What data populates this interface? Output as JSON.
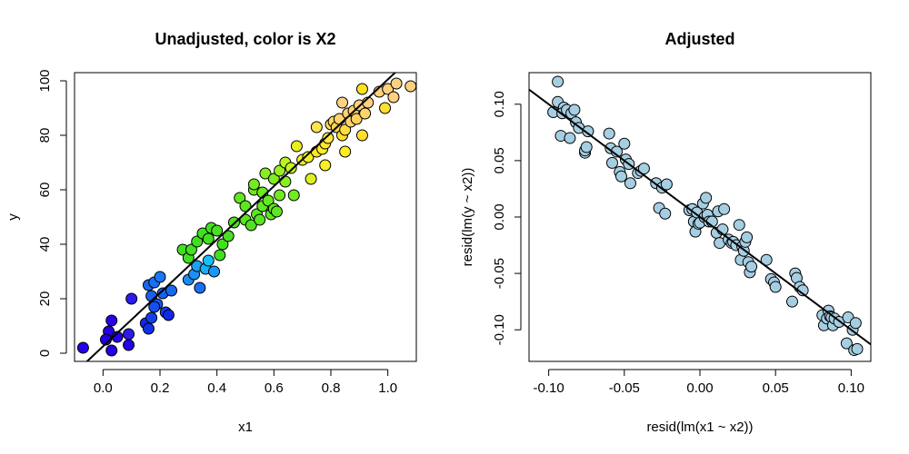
{
  "chart_data": [
    {
      "type": "scatter",
      "title": "Unadjusted, color is X2",
      "xlabel": "x1",
      "ylabel": "y",
      "xlim": [
        -0.1,
        1.1
      ],
      "ylim": [
        -3,
        103
      ],
      "xticks": [
        0.0,
        0.2,
        0.4,
        0.6,
        0.8,
        1.0
      ],
      "xtick_labels": [
        "0.0",
        "0.2",
        "0.4",
        "0.6",
        "0.8",
        "1.0"
      ],
      "yticks": [
        0,
        20,
        40,
        60,
        80,
        100
      ],
      "ytick_labels": [
        "0",
        "20",
        "40",
        "60",
        "80",
        "100"
      ],
      "fit_line": {
        "intercept": 2.5,
        "slope": 98
      },
      "color_encoding": "X2",
      "points": [
        {
          "x": -0.07,
          "y": 2,
          "color": "#2400e6"
        },
        {
          "x": 0.02,
          "y": 8,
          "color": "#2400e6"
        },
        {
          "x": 0.03,
          "y": 12,
          "color": "#2a00ea"
        },
        {
          "x": 0.03,
          "y": 1,
          "color": "#2400e6"
        },
        {
          "x": 0.01,
          "y": 5,
          "color": "#2000e0"
        },
        {
          "x": 0.05,
          "y": 6,
          "color": "#2a00ea"
        },
        {
          "x": 0.09,
          "y": 7,
          "color": "#2c1be6"
        },
        {
          "x": 0.09,
          "y": 3,
          "color": "#2400e6"
        },
        {
          "x": 0.1,
          "y": 20,
          "color": "#2a1bf0"
        },
        {
          "x": 0.15,
          "y": 11,
          "color": "#1028e8"
        },
        {
          "x": 0.16,
          "y": 9,
          "color": "#1030ea"
        },
        {
          "x": 0.17,
          "y": 13,
          "color": "#1040ee"
        },
        {
          "x": 0.16,
          "y": 25,
          "color": "#1868f0"
        },
        {
          "x": 0.18,
          "y": 26,
          "color": "#1a70f4"
        },
        {
          "x": 0.17,
          "y": 21,
          "color": "#1860f0"
        },
        {
          "x": 0.19,
          "y": 18,
          "color": "#1458ee"
        },
        {
          "x": 0.2,
          "y": 28,
          "color": "#1a78f6"
        },
        {
          "x": 0.21,
          "y": 22,
          "color": "#1860f2"
        },
        {
          "x": 0.22,
          "y": 15,
          "color": "#1040ee"
        },
        {
          "x": 0.23,
          "y": 14,
          "color": "#1028e8"
        },
        {
          "x": 0.24,
          "y": 23,
          "color": "#1868f2"
        },
        {
          "x": 0.18,
          "y": 17,
          "color": "#1450ee"
        },
        {
          "x": 0.28,
          "y": 38,
          "color": "#40e020"
        },
        {
          "x": 0.3,
          "y": 35,
          "color": "#40e020"
        },
        {
          "x": 0.31,
          "y": 38,
          "color": "#44e020"
        },
        {
          "x": 0.33,
          "y": 41,
          "color": "#40e020"
        },
        {
          "x": 0.3,
          "y": 27,
          "color": "#1a8cf8"
        },
        {
          "x": 0.32,
          "y": 29,
          "color": "#1a90f8"
        },
        {
          "x": 0.33,
          "y": 32,
          "color": "#1ca0f8"
        },
        {
          "x": 0.34,
          "y": 24,
          "color": "#1870f4"
        },
        {
          "x": 0.35,
          "y": 44,
          "color": "#40e020"
        },
        {
          "x": 0.36,
          "y": 31,
          "color": "#1ab0f8"
        },
        {
          "x": 0.37,
          "y": 34,
          "color": "#14c0f8"
        },
        {
          "x": 0.38,
          "y": 46,
          "color": "#44e020"
        },
        {
          "x": 0.37,
          "y": 42,
          "color": "#40e020"
        },
        {
          "x": 0.39,
          "y": 30,
          "color": "#1a98f8"
        },
        {
          "x": 0.4,
          "y": 45,
          "color": "#48e020"
        },
        {
          "x": 0.41,
          "y": 36,
          "color": "#40e020"
        },
        {
          "x": 0.42,
          "y": 40,
          "color": "#44e020"
        },
        {
          "x": 0.44,
          "y": 43,
          "color": "#48e020"
        },
        {
          "x": 0.46,
          "y": 48,
          "color": "#4ce020"
        },
        {
          "x": 0.48,
          "y": 57,
          "color": "#60e820"
        },
        {
          "x": 0.5,
          "y": 49,
          "color": "#58e420"
        },
        {
          "x": 0.5,
          "y": 54,
          "color": "#5ce620"
        },
        {
          "x": 0.52,
          "y": 47,
          "color": "#50e220"
        },
        {
          "x": 0.53,
          "y": 60,
          "color": "#70ea20"
        },
        {
          "x": 0.53,
          "y": 62,
          "color": "#74ea20"
        },
        {
          "x": 0.54,
          "y": 51,
          "color": "#5ce620"
        },
        {
          "x": 0.55,
          "y": 49,
          "color": "#58e420"
        },
        {
          "x": 0.56,
          "y": 54,
          "color": "#60e820"
        },
        {
          "x": 0.56,
          "y": 59,
          "color": "#6cea20"
        },
        {
          "x": 0.57,
          "y": 66,
          "color": "#88ee20"
        },
        {
          "x": 0.58,
          "y": 56,
          "color": "#66e820"
        },
        {
          "x": 0.59,
          "y": 51,
          "color": "#5ce620"
        },
        {
          "x": 0.6,
          "y": 64,
          "color": "#80ec20"
        },
        {
          "x": 0.6,
          "y": 53,
          "color": "#60e820"
        },
        {
          "x": 0.61,
          "y": 52,
          "color": "#5ee620"
        },
        {
          "x": 0.62,
          "y": 67,
          "color": "#98f020"
        },
        {
          "x": 0.62,
          "y": 58,
          "color": "#70ea20"
        },
        {
          "x": 0.64,
          "y": 70,
          "color": "#b8f420"
        },
        {
          "x": 0.64,
          "y": 63,
          "color": "#88ee20"
        },
        {
          "x": 0.66,
          "y": 68,
          "color": "#c8f420"
        },
        {
          "x": 0.67,
          "y": 58,
          "color": "#74ea20"
        },
        {
          "x": 0.68,
          "y": 76,
          "color": "#e8f020"
        },
        {
          "x": 0.7,
          "y": 71,
          "color": "#eef020"
        },
        {
          "x": 0.72,
          "y": 72,
          "color": "#f4f020"
        },
        {
          "x": 0.73,
          "y": 64,
          "color": "#dcf020"
        },
        {
          "x": 0.75,
          "y": 74,
          "color": "#ffe820"
        },
        {
          "x": 0.75,
          "y": 83,
          "color": "#ffe450"
        },
        {
          "x": 0.77,
          "y": 75,
          "color": "#ffee20"
        },
        {
          "x": 0.78,
          "y": 77,
          "color": "#ffe830"
        },
        {
          "x": 0.78,
          "y": 69,
          "color": "#f8f020"
        },
        {
          "x": 0.79,
          "y": 79,
          "color": "#ffe840"
        },
        {
          "x": 0.8,
          "y": 84,
          "color": "#ffd860"
        },
        {
          "x": 0.81,
          "y": 85,
          "color": "#ffd660"
        },
        {
          "x": 0.82,
          "y": 83,
          "color": "#ffd450"
        },
        {
          "x": 0.83,
          "y": 86,
          "color": "#ffd468"
        },
        {
          "x": 0.84,
          "y": 80,
          "color": "#ffe030"
        },
        {
          "x": 0.84,
          "y": 92,
          "color": "#ffd280"
        },
        {
          "x": 0.85,
          "y": 82,
          "color": "#ffdc40"
        },
        {
          "x": 0.85,
          "y": 74,
          "color": "#ffec20"
        },
        {
          "x": 0.86,
          "y": 88,
          "color": "#ffd070"
        },
        {
          "x": 0.87,
          "y": 85,
          "color": "#ffd470"
        },
        {
          "x": 0.88,
          "y": 89,
          "color": "#ffd070"
        },
        {
          "x": 0.89,
          "y": 86,
          "color": "#ffd060"
        },
        {
          "x": 0.9,
          "y": 91,
          "color": "#ffd080"
        },
        {
          "x": 0.91,
          "y": 80,
          "color": "#ffe030"
        },
        {
          "x": 0.91,
          "y": 97,
          "color": "#ffe020"
        },
        {
          "x": 0.92,
          "y": 88,
          "color": "#ffd468"
        },
        {
          "x": 0.93,
          "y": 92,
          "color": "#ffd080"
        },
        {
          "x": 0.97,
          "y": 96,
          "color": "#ffd080"
        },
        {
          "x": 0.99,
          "y": 90,
          "color": "#ffe030"
        },
        {
          "x": 1.0,
          "y": 97,
          "color": "#ffd080"
        },
        {
          "x": 1.02,
          "y": 94,
          "color": "#ffd080"
        },
        {
          "x": 1.03,
          "y": 99,
          "color": "#ffd080"
        },
        {
          "x": 1.08,
          "y": 98,
          "color": "#ffd080"
        }
      ]
    },
    {
      "type": "scatter",
      "title": "Adjusted",
      "xlabel": "resid(lm(x1 ~ x2))",
      "ylabel": "resid(lm(y ~ x2))",
      "xlim": [
        -0.113,
        0.113
      ],
      "ylim": [
        -0.128,
        0.128
      ],
      "xticks": [
        -0.1,
        -0.05,
        0.0,
        0.05,
        0.1
      ],
      "xtick_labels": [
        "-0.10",
        "-0.05",
        "0.00",
        "0.05",
        "0.10"
      ],
      "yticks": [
        -0.1,
        -0.05,
        0.0,
        0.05,
        0.1
      ],
      "ytick_labels": [
        "-0.10",
        "-0.05",
        "0.00",
        "0.05",
        "0.10"
      ],
      "fit_line": {
        "intercept": 0.0,
        "slope": -1.0
      },
      "point_color": "#a6cee3",
      "points": [
        {
          "x": -0.094,
          "y": 0.12
        },
        {
          "x": -0.097,
          "y": 0.093
        },
        {
          "x": -0.094,
          "y": 0.102
        },
        {
          "x": -0.092,
          "y": 0.072
        },
        {
          "x": -0.09,
          "y": 0.097
        },
        {
          "x": -0.091,
          "y": 0.092
        },
        {
          "x": -0.088,
          "y": 0.095
        },
        {
          "x": -0.086,
          "y": 0.07
        },
        {
          "x": -0.085,
          "y": 0.092
        },
        {
          "x": -0.083,
          "y": 0.095
        },
        {
          "x": -0.082,
          "y": 0.084
        },
        {
          "x": -0.08,
          "y": 0.079
        },
        {
          "x": -0.076,
          "y": 0.057
        },
        {
          "x": -0.076,
          "y": 0.059
        },
        {
          "x": -0.075,
          "y": 0.062
        },
        {
          "x": -0.074,
          "y": 0.076
        },
        {
          "x": -0.06,
          "y": 0.074
        },
        {
          "x": -0.059,
          "y": 0.061
        },
        {
          "x": -0.058,
          "y": 0.048
        },
        {
          "x": -0.055,
          "y": 0.058
        },
        {
          "x": -0.053,
          "y": 0.04
        },
        {
          "x": -0.052,
          "y": 0.036
        },
        {
          "x": -0.05,
          "y": 0.065
        },
        {
          "x": -0.049,
          "y": 0.051
        },
        {
          "x": -0.047,
          "y": 0.047
        },
        {
          "x": -0.046,
          "y": 0.03
        },
        {
          "x": -0.041,
          "y": 0.039
        },
        {
          "x": -0.039,
          "y": 0.041
        },
        {
          "x": -0.037,
          "y": 0.043
        },
        {
          "x": -0.029,
          "y": 0.03
        },
        {
          "x": -0.027,
          "y": 0.008
        },
        {
          "x": -0.025,
          "y": 0.026
        },
        {
          "x": -0.023,
          "y": 0.003
        },
        {
          "x": -0.022,
          "y": 0.029
        },
        {
          "x": -0.007,
          "y": 0.006
        },
        {
          "x": -0.005,
          "y": 0.007
        },
        {
          "x": -0.004,
          "y": -0.004
        },
        {
          "x": -0.003,
          "y": -0.013
        },
        {
          "x": -0.002,
          "y": 0.004
        },
        {
          "x": -0.001,
          "y": -0.006
        },
        {
          "x": 0.0,
          "y": -0.005
        },
        {
          "x": 0.002,
          "y": 0.012
        },
        {
          "x": 0.003,
          "y": 0.0
        },
        {
          "x": 0.004,
          "y": 0.017
        },
        {
          "x": 0.005,
          "y": 0.002
        },
        {
          "x": 0.006,
          "y": -0.004
        },
        {
          "x": 0.008,
          "y": -0.004
        },
        {
          "x": 0.011,
          "y": -0.014
        },
        {
          "x": 0.012,
          "y": 0.005
        },
        {
          "x": 0.013,
          "y": -0.023
        },
        {
          "x": 0.015,
          "y": -0.011
        },
        {
          "x": 0.016,
          "y": 0.007
        },
        {
          "x": 0.019,
          "y": -0.02
        },
        {
          "x": 0.021,
          "y": -0.023
        },
        {
          "x": 0.022,
          "y": -0.022
        },
        {
          "x": 0.024,
          "y": -0.025
        },
        {
          "x": 0.026,
          "y": -0.007
        },
        {
          "x": 0.027,
          "y": -0.038
        },
        {
          "x": 0.028,
          "y": -0.026
        },
        {
          "x": 0.029,
          "y": -0.03
        },
        {
          "x": 0.03,
          "y": -0.022
        },
        {
          "x": 0.031,
          "y": -0.018
        },
        {
          "x": 0.032,
          "y": -0.04
        },
        {
          "x": 0.033,
          "y": -0.049
        },
        {
          "x": 0.034,
          "y": -0.044
        },
        {
          "x": 0.044,
          "y": -0.038
        },
        {
          "x": 0.047,
          "y": -0.055
        },
        {
          "x": 0.049,
          "y": -0.058
        },
        {
          "x": 0.05,
          "y": -0.062
        },
        {
          "x": 0.061,
          "y": -0.075
        },
        {
          "x": 0.063,
          "y": -0.05
        },
        {
          "x": 0.064,
          "y": -0.054
        },
        {
          "x": 0.066,
          "y": -0.062
        },
        {
          "x": 0.068,
          "y": -0.065
        },
        {
          "x": 0.081,
          "y": -0.087
        },
        {
          "x": 0.082,
          "y": -0.096
        },
        {
          "x": 0.084,
          "y": -0.09
        },
        {
          "x": 0.085,
          "y": -0.083
        },
        {
          "x": 0.086,
          "y": -0.088
        },
        {
          "x": 0.087,
          "y": -0.089
        },
        {
          "x": 0.088,
          "y": -0.096
        },
        {
          "x": 0.089,
          "y": -0.09
        },
        {
          "x": 0.092,
          "y": -0.093
        },
        {
          "x": 0.097,
          "y": -0.112
        },
        {
          "x": 0.098,
          "y": -0.089
        },
        {
          "x": 0.101,
          "y": -0.1
        },
        {
          "x": 0.102,
          "y": -0.118
        },
        {
          "x": 0.103,
          "y": -0.094
        },
        {
          "x": 0.104,
          "y": -0.117
        }
      ]
    }
  ]
}
